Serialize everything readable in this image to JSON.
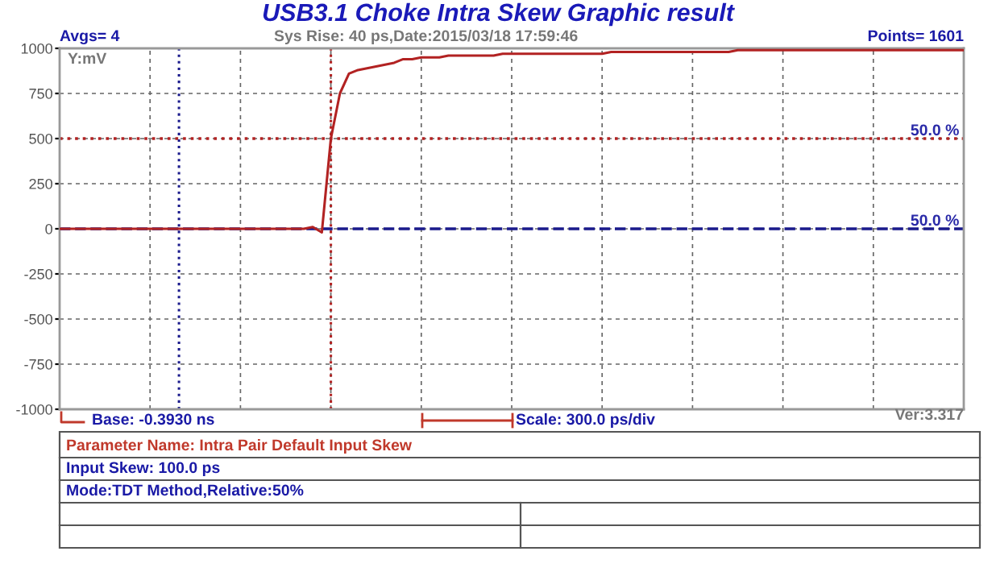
{
  "chart_data": {
    "type": "line",
    "title": "USB3.1 Choke Intra Skew Graphic result",
    "categories": [
      null,
      null,
      null,
      null,
      null,
      null,
      null,
      null,
      null,
      null,
      null,
      null,
      null,
      null,
      null,
      null,
      null,
      null,
      null,
      null,
      null,
      null,
      null,
      null,
      null,
      null,
      null,
      null,
      null,
      null,
      null,
      null,
      null,
      null,
      null,
      null,
      null,
      null,
      null,
      null,
      null,
      null,
      null,
      null,
      null,
      null,
      null,
      null,
      null,
      null,
      null,
      null,
      null,
      null,
      null,
      null,
      null,
      null,
      null,
      null,
      null,
      null,
      null,
      null,
      null,
      null,
      null,
      null,
      null,
      null,
      null,
      null,
      null,
      null,
      null,
      null,
      null,
      null,
      null,
      null,
      null,
      null,
      null,
      null,
      null,
      null,
      null,
      null,
      null,
      null,
      null,
      null,
      null,
      null,
      null,
      null,
      null,
      null,
      null,
      null,
      null
    ],
    "series": [
      {
        "color": "#b22222",
        "values": [
          0,
          0,
          0,
          0,
          0,
          0,
          0,
          0,
          0,
          0,
          0,
          0,
          0,
          0,
          0,
          0,
          0,
          0,
          0,
          0,
          0,
          0,
          0,
          0,
          0,
          0,
          0,
          0,
          10,
          -20,
          500,
          750,
          860,
          880,
          890,
          900,
          910,
          920,
          940,
          940,
          950,
          950,
          950,
          960,
          960,
          960,
          960,
          960,
          960,
          970,
          970,
          970,
          970,
          970,
          970,
          970,
          970,
          970,
          970,
          970,
          970,
          980,
          980,
          980,
          980,
          980,
          980,
          980,
          980,
          980,
          980,
          980,
          980,
          980,
          980,
          990,
          990,
          990,
          990,
          990,
          990,
          990,
          990,
          990,
          990,
          990,
          990,
          990,
          990,
          990,
          990,
          990,
          990,
          990,
          990,
          990,
          990,
          990,
          990,
          990,
          990
        ]
      }
    ],
    "ylim": [
      -1000,
      1000
    ],
    "yticks": [
      -1000,
      -750,
      -500,
      -250,
      0,
      250,
      500,
      750,
      1000
    ],
    "grid": true,
    "marker": "none",
    "line_style": "solid",
    "ref_lines": [
      {
        "axis": "y",
        "value": 500,
        "color": "#b22222",
        "line_style": "dotted"
      },
      {
        "axis": "y",
        "value": 0,
        "color": "#1a1a8c",
        "line_style": "dashed"
      }
    ],
    "annotations": [
      "Avgs= 4",
      "Sys Rise: 40 ps,Date:2015/03/18 17:59:46",
      "Points= 1601",
      "Y:mV",
      "Base: -0.3930 ns",
      "Scale: 300.0 ps/div",
      "Ver:3.317",
      "Parameter Name: Intra Pair Default Input Skew",
      "Input Skew: 100.0 ps",
      "Mode:TDT Method,Relative:50%",
      {
        "text": "50.0 %",
        "y": 500
      },
      {
        "text": "50.0 %",
        "y": 0
      }
    ]
  }
}
